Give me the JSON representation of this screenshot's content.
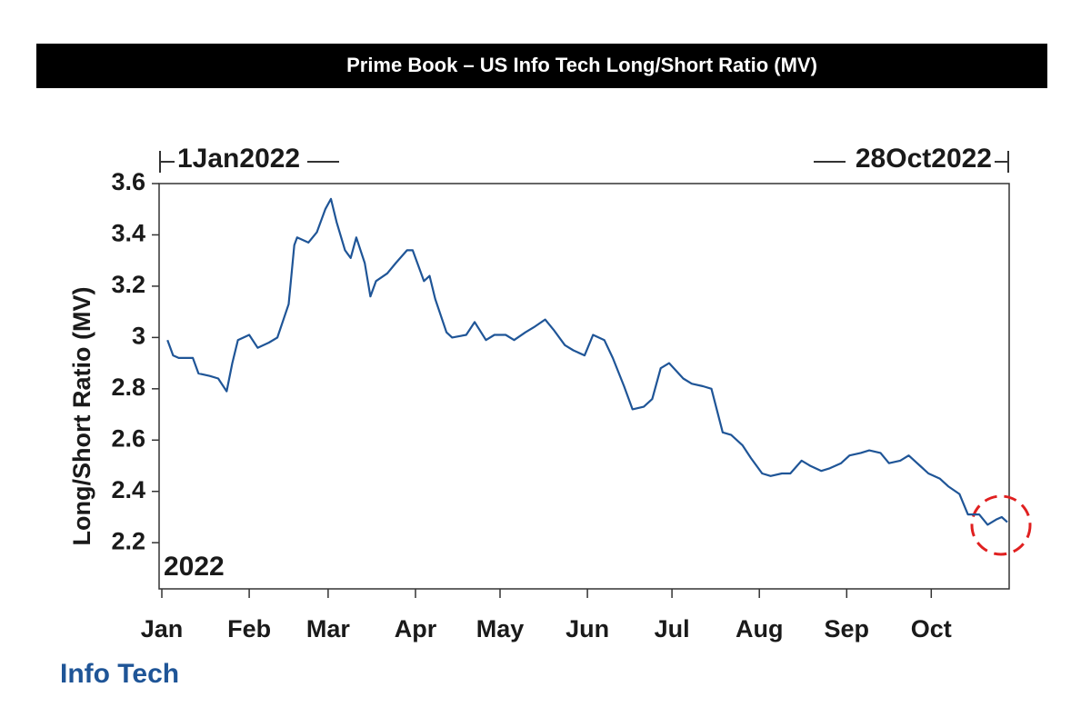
{
  "chart_data": {
    "type": "line",
    "title": "Prime Book – US Info Tech Long/Short Ratio (MV)",
    "start_label": "1Jan2022",
    "end_label": "28Oct2022",
    "year_label": "2022",
    "y_label": "Long/Short Ratio (MV)",
    "xlim": [
      "2022-01-01",
      "2022-10-28"
    ],
    "xticks": [
      {
        "value": "2022-01-01",
        "label": "Jan"
      },
      {
        "value": "2022-02-01",
        "label": "Feb"
      },
      {
        "value": "2022-03-01",
        "label": "Mar"
      },
      {
        "value": "2022-04-01",
        "label": "Apr"
      },
      {
        "value": "2022-05-01",
        "label": "May"
      },
      {
        "value": "2022-06-01",
        "label": "Jun"
      },
      {
        "value": "2022-07-01",
        "label": "Jul"
      },
      {
        "value": "2022-08-01",
        "label": "Aug"
      },
      {
        "value": "2022-09-01",
        "label": "Sep"
      },
      {
        "value": "2022-10-01",
        "label": "Oct"
      }
    ],
    "ylim": [
      2.02,
      3.6
    ],
    "yticks": [
      2.2,
      2.4,
      2.6,
      2.8,
      3,
      3.2,
      3.4,
      3.6
    ],
    "x": [
      "2022-01-03",
      "2022-01-05",
      "2022-01-07",
      "2022-01-12",
      "2022-01-14",
      "2022-01-18",
      "2022-01-21",
      "2022-01-24",
      "2022-01-26",
      "2022-01-28",
      "2022-02-01",
      "2022-02-04",
      "2022-02-08",
      "2022-02-11",
      "2022-02-15",
      "2022-02-17",
      "2022-02-18",
      "2022-02-22",
      "2022-02-25",
      "2022-02-28",
      "2022-03-02",
      "2022-03-04",
      "2022-03-07",
      "2022-03-09",
      "2022-03-11",
      "2022-03-14",
      "2022-03-16",
      "2022-03-18",
      "2022-03-22",
      "2022-03-25",
      "2022-03-29",
      "2022-03-31",
      "2022-04-04",
      "2022-04-06",
      "2022-04-08",
      "2022-04-12",
      "2022-04-14",
      "2022-04-19",
      "2022-04-22",
      "2022-04-26",
      "2022-04-29",
      "2022-05-03",
      "2022-05-06",
      "2022-05-10",
      "2022-05-13",
      "2022-05-17",
      "2022-05-20",
      "2022-05-24",
      "2022-05-27",
      "2022-05-31",
      "2022-06-03",
      "2022-06-07",
      "2022-06-10",
      "2022-06-14",
      "2022-06-17",
      "2022-06-21",
      "2022-06-24",
      "2022-06-27",
      "2022-06-30",
      "2022-07-05",
      "2022-07-08",
      "2022-07-12",
      "2022-07-15",
      "2022-07-19",
      "2022-07-22",
      "2022-07-26",
      "2022-07-29",
      "2022-08-02",
      "2022-08-05",
      "2022-08-09",
      "2022-08-12",
      "2022-08-16",
      "2022-08-19",
      "2022-08-23",
      "2022-08-26",
      "2022-08-30",
      "2022-09-02",
      "2022-09-06",
      "2022-09-09",
      "2022-09-13",
      "2022-09-16",
      "2022-09-20",
      "2022-09-23",
      "2022-09-27",
      "2022-09-30",
      "2022-10-04",
      "2022-10-07",
      "2022-10-11",
      "2022-10-14",
      "2022-10-18",
      "2022-10-21",
      "2022-10-24",
      "2022-10-26",
      "2022-10-28"
    ],
    "series": [
      {
        "name": "Info Tech",
        "color": "#1f5597",
        "values": [
          2.99,
          2.93,
          2.92,
          2.92,
          2.86,
          2.85,
          2.84,
          2.79,
          2.9,
          2.99,
          3.01,
          2.96,
          2.98,
          3.0,
          3.13,
          3.36,
          3.39,
          3.37,
          3.41,
          3.5,
          3.54,
          3.45,
          3.34,
          3.31,
          3.39,
          3.29,
          3.16,
          3.22,
          3.25,
          3.29,
          3.34,
          3.34,
          3.22,
          3.24,
          3.15,
          3.02,
          3.0,
          3.01,
          3.06,
          2.99,
          3.01,
          3.01,
          2.99,
          3.02,
          3.04,
          3.07,
          3.03,
          2.97,
          2.95,
          2.93,
          3.01,
          2.99,
          2.92,
          2.81,
          2.72,
          2.73,
          2.76,
          2.88,
          2.9,
          2.84,
          2.82,
          2.81,
          2.8,
          2.63,
          2.62,
          2.58,
          2.53,
          2.47,
          2.46,
          2.47,
          2.47,
          2.52,
          2.5,
          2.48,
          2.49,
          2.51,
          2.54,
          2.55,
          2.56,
          2.55,
          2.51,
          2.52,
          2.54,
          2.5,
          2.47,
          2.45,
          2.42,
          2.39,
          2.31,
          2.31,
          2.27,
          2.29,
          2.3,
          2.28
        ]
      }
    ]
  }
}
